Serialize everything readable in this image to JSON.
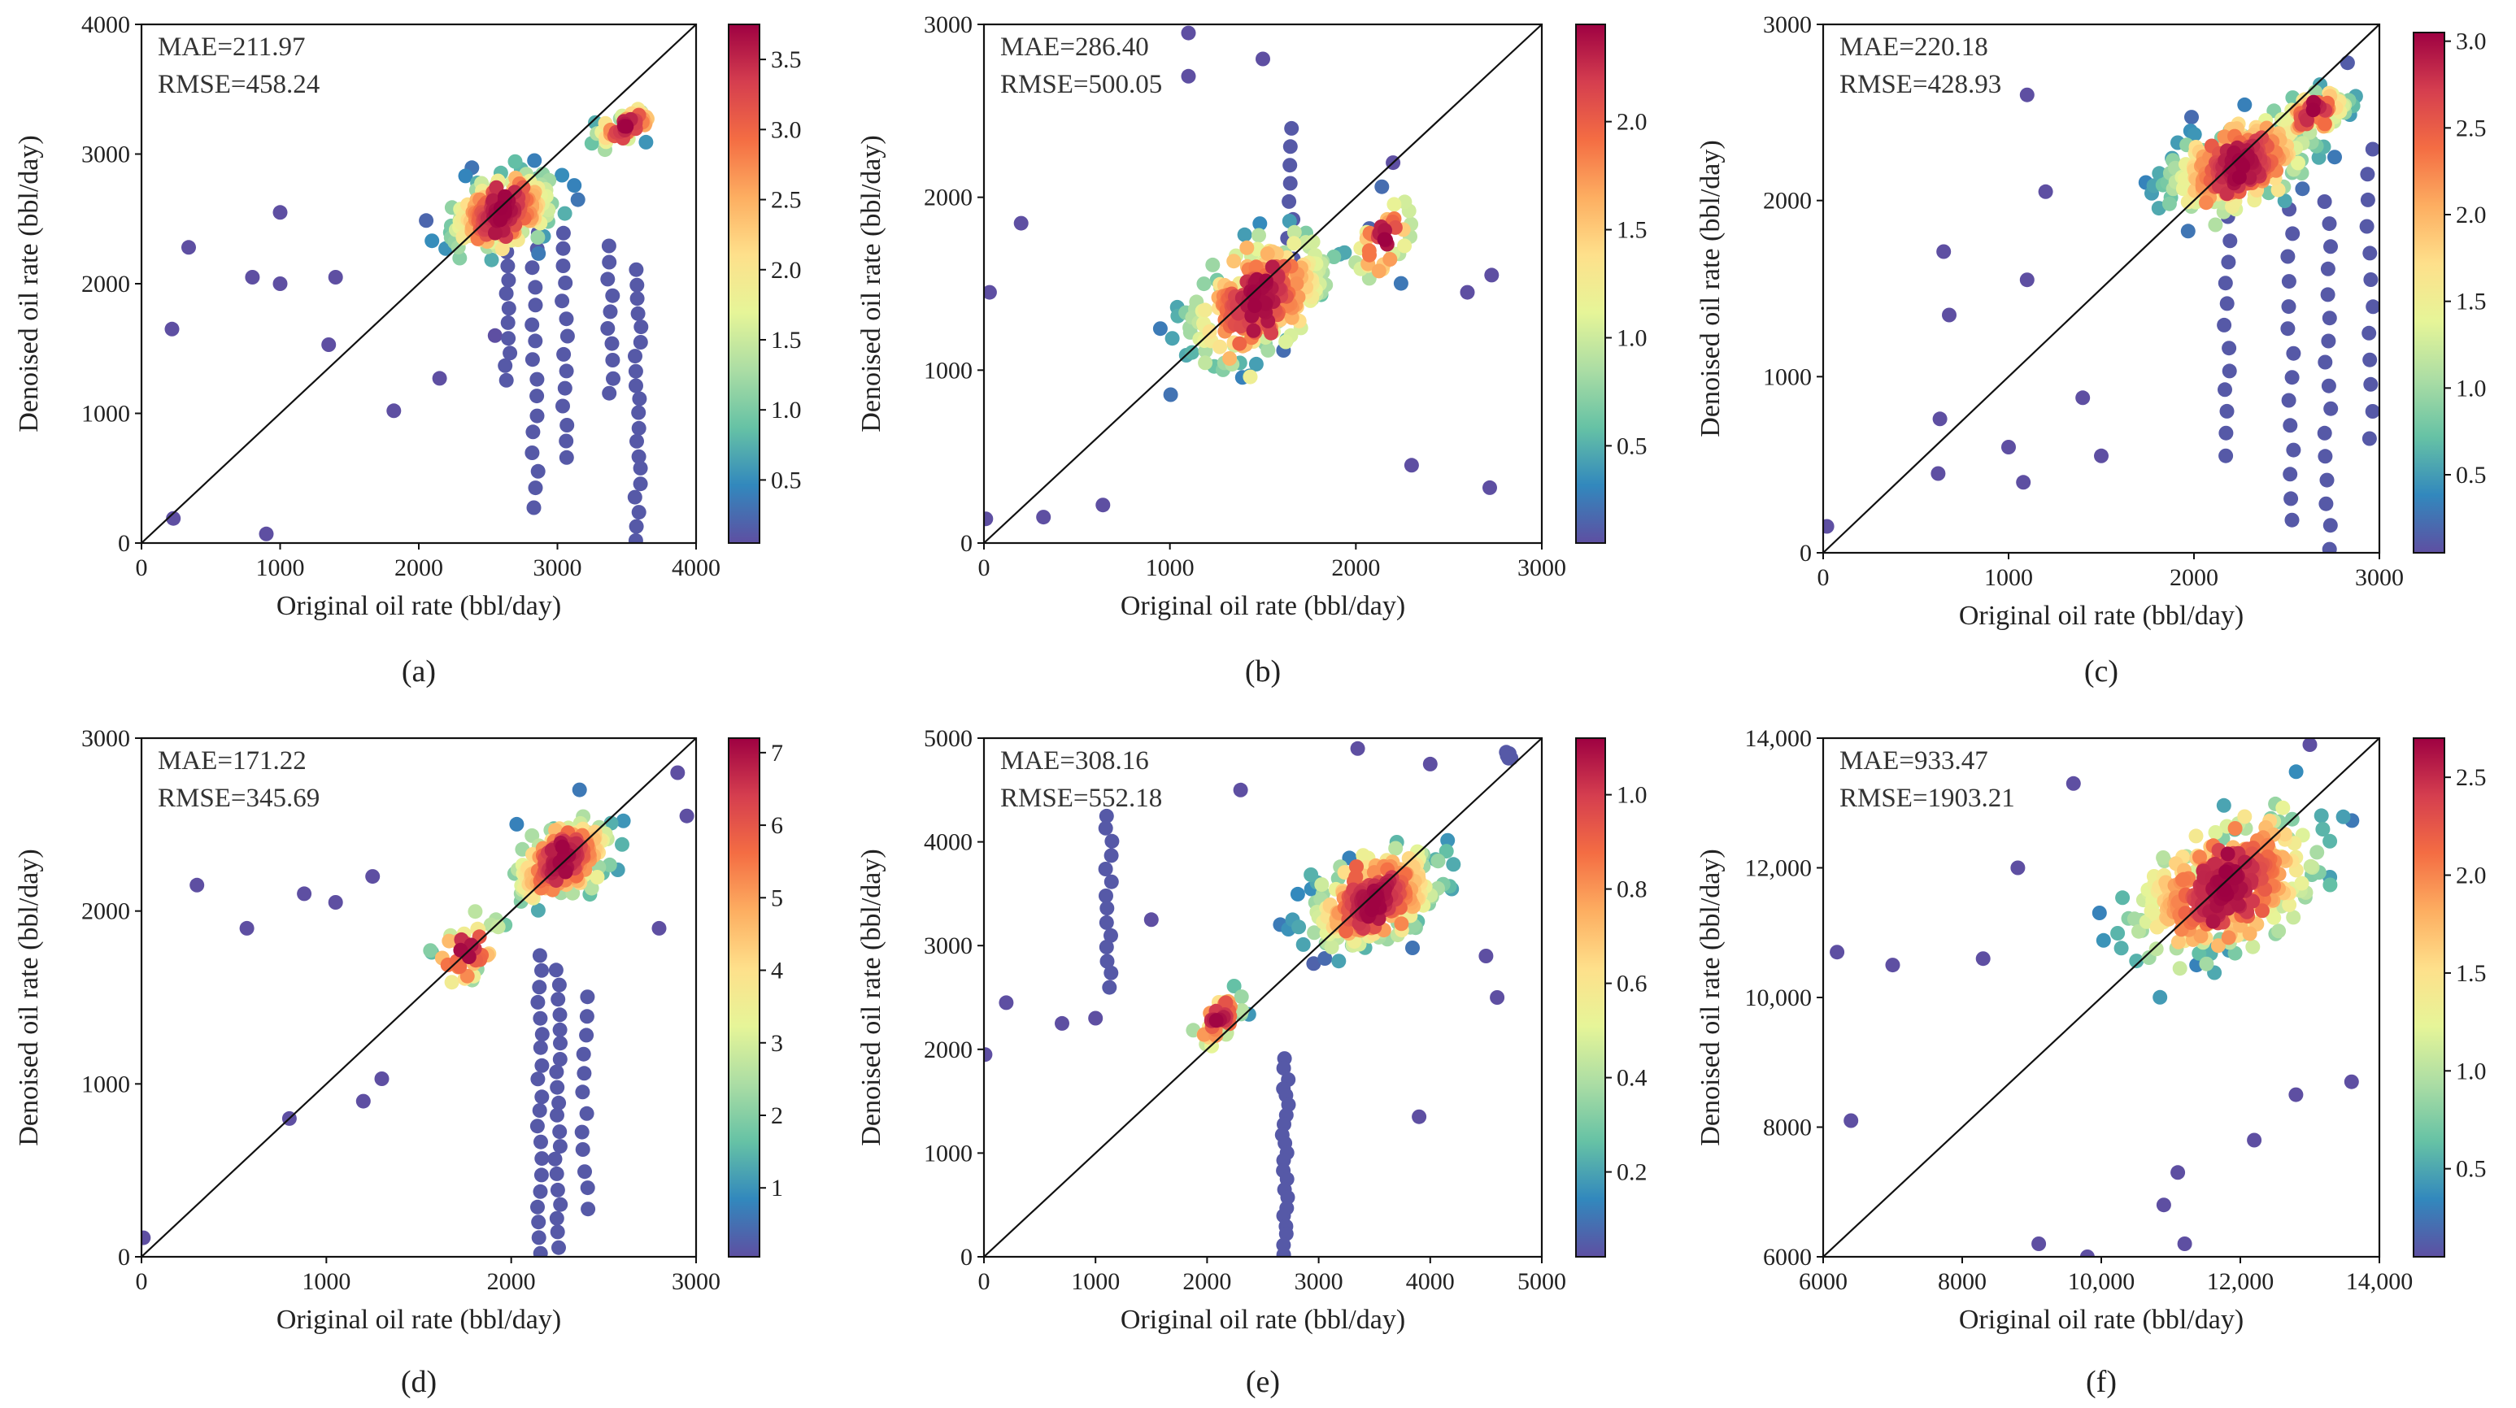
{
  "chart_data": [
    {
      "panel": "(a)",
      "type": "scatter",
      "title": "",
      "xlabel": "Original oil rate (bbl/day)",
      "ylabel": "Denoised oil rate (bbl/day)",
      "xlim": [
        0,
        4000
      ],
      "ylim": [
        0,
        4000
      ],
      "xticks": [
        "0",
        "1000",
        "2000",
        "3000",
        "4000"
      ],
      "yticks": [
        "0",
        "1000",
        "2000",
        "3000",
        "4000"
      ],
      "annotations": [
        "MAE=211.97",
        "RMSE=458.24"
      ],
      "colorbar": {
        "min": 0.05,
        "max": 3.75,
        "ticks": [
          "0.5",
          "1.0",
          "1.5",
          "2.0",
          "2.5",
          "3.0",
          "3.5"
        ]
      },
      "reference_line": "y = x",
      "clusters": [
        {
          "center": [
            2600,
            2550
          ],
          "spread": [
            420,
            320
          ],
          "count": 260
        },
        {
          "center": [
            3500,
            3200
          ],
          "spread": [
            250,
            160
          ],
          "count": 45
        }
      ],
      "streaks": [
        {
          "x": 2640,
          "y_from": 2250,
          "y_to": 1250,
          "count": 10
        },
        {
          "x": 2840,
          "y_from": 2400,
          "y_to": 280,
          "count": 16
        },
        {
          "x": 3050,
          "y_from": 2400,
          "y_to": 650,
          "count": 14
        },
        {
          "x": 3380,
          "y_from": 2300,
          "y_to": 1150,
          "count": 10
        },
        {
          "x": 3580,
          "y_from": 2100,
          "y_to": 20,
          "count": 20
        }
      ],
      "outliers": [
        [
          220,
          1650
        ],
        [
          340,
          2280
        ],
        [
          230,
          190
        ],
        [
          900,
          70
        ],
        [
          800,
          2050
        ],
        [
          1000,
          2550
        ],
        [
          1000,
          2000
        ],
        [
          1400,
          2050
        ],
        [
          1350,
          1530
        ],
        [
          1820,
          1020
        ],
        [
          2150,
          1270
        ],
        [
          2550,
          1600
        ]
      ]
    },
    {
      "panel": "(b)",
      "type": "scatter",
      "title": "",
      "xlabel": "Original oil rate (bbl/day)",
      "ylabel": "Denoised oil rate (bbl/day)",
      "xlim": [
        0,
        3000
      ],
      "ylim": [
        0,
        3000
      ],
      "xticks": [
        "0",
        "1000",
        "2000",
        "3000"
      ],
      "yticks": [
        "0",
        "1000",
        "2000",
        "3000"
      ],
      "annotations": [
        "MAE=286.40",
        "RMSE=500.05"
      ],
      "colorbar": {
        "min": 0.05,
        "max": 2.45,
        "ticks": [
          "0.5",
          "1.0",
          "1.5",
          "2.0"
        ]
      },
      "reference_line": "y = x",
      "clusters": [
        {
          "center": [
            1480,
            1420
          ],
          "spread": [
            420,
            380
          ],
          "count": 300
        },
        {
          "center": [
            2150,
            1750
          ],
          "spread": [
            180,
            280
          ],
          "count": 40
        }
      ],
      "streaks": [
        {
          "x": 1650,
          "y_from": 2400,
          "y_to": 1650,
          "count": 8
        }
      ],
      "outliers": [
        [
          1100,
          2950
        ],
        [
          1100,
          2700
        ],
        [
          1500,
          2800
        ],
        [
          200,
          1850
        ],
        [
          30,
          1450
        ],
        [
          10,
          140
        ],
        [
          320,
          150
        ],
        [
          640,
          220
        ],
        [
          2720,
          320
        ],
        [
          2730,
          1550
        ],
        [
          2300,
          450
        ],
        [
          2600,
          1450
        ],
        [
          2200,
          2200
        ]
      ]
    },
    {
      "panel": "(c)",
      "type": "scatter",
      "title": "",
      "xlabel": "Original oil rate (bbl/day)",
      "ylabel": "Denoised oil rate (bbl/day)",
      "xlim": [
        0,
        3000
      ],
      "ylim": [
        0,
        3000
      ],
      "xticks": [
        "0",
        "1000",
        "2000",
        "3000"
      ],
      "yticks": [
        "0",
        "1000",
        "2000",
        "3000"
      ],
      "annotations": [
        "MAE=220.18",
        "RMSE=428.93"
      ],
      "colorbar": {
        "min": 0.05,
        "max": 3.05,
        "ticks": [
          "0.5",
          "1.0",
          "1.5",
          "2.0",
          "2.5",
          "3.0"
        ]
      },
      "reference_line": "y = x",
      "clusters": [
        {
          "center": [
            2250,
            2200
          ],
          "spread": [
            420,
            280
          ],
          "count": 300
        },
        {
          "center": [
            2650,
            2500
          ],
          "spread": [
            200,
            150
          ],
          "count": 60
        }
      ],
      "streaks": [
        {
          "x": 2180,
          "y_from": 1900,
          "y_to": 550,
          "count": 12
        },
        {
          "x": 2520,
          "y_from": 1950,
          "y_to": 180,
          "count": 14
        },
        {
          "x": 2720,
          "y_from": 2000,
          "y_to": 20,
          "count": 16
        },
        {
          "x": 2950,
          "y_from": 2300,
          "y_to": 650,
          "count": 12
        }
      ],
      "outliers": [
        [
          20,
          150
        ],
        [
          620,
          450
        ],
        [
          630,
          760
        ],
        [
          650,
          1710
        ],
        [
          680,
          1350
        ],
        [
          1000,
          600
        ],
        [
          1080,
          400
        ],
        [
          1100,
          1550
        ],
        [
          1100,
          2600
        ],
        [
          1500,
          550
        ],
        [
          1400,
          880
        ],
        [
          1200,
          2050
        ]
      ]
    },
    {
      "panel": "(d)",
      "type": "scatter",
      "title": "",
      "xlabel": "Original oil rate (bbl/day)",
      "ylabel": "Denoised oil rate (bbl/day)",
      "xlim": [
        0,
        3000
      ],
      "ylim": [
        0,
        3000
      ],
      "xticks": [
        "0",
        "1000",
        "2000",
        "3000"
      ],
      "yticks": [
        "0",
        "1000",
        "2000",
        "3000"
      ],
      "annotations": [
        "MAE=171.22",
        "RMSE=345.69"
      ],
      "colorbar": {
        "min": 0.05,
        "max": 7.2,
        "ticks": [
          "1",
          "2",
          "3",
          "4",
          "5",
          "6",
          "7"
        ]
      },
      "reference_line": "y = x",
      "clusters": [
        {
          "center": [
            2280,
            2300
          ],
          "spread": [
            300,
            260
          ],
          "count": 230
        },
        {
          "center": [
            1750,
            1750
          ],
          "spread": [
            220,
            220
          ],
          "count": 40
        }
      ],
      "streaks": [
        {
          "x": 2150,
          "y_from": 1750,
          "y_to": 20,
          "count": 20
        },
        {
          "x": 2250,
          "y_from": 1650,
          "y_to": 60,
          "count": 20
        },
        {
          "x": 2400,
          "y_from": 1500,
          "y_to": 280,
          "count": 12
        }
      ],
      "outliers": [
        [
          10,
          110
        ],
        [
          300,
          2150
        ],
        [
          570,
          1900
        ],
        [
          800,
          800
        ],
        [
          880,
          2100
        ],
        [
          1050,
          2050
        ],
        [
          1200,
          900
        ],
        [
          1300,
          1030
        ],
        [
          1250,
          2200
        ],
        [
          2900,
          2800
        ],
        [
          2950,
          2550
        ],
        [
          2800,
          1900
        ]
      ]
    },
    {
      "panel": "(e)",
      "type": "scatter",
      "title": "",
      "xlabel": "Original oil rate (bbl/day)",
      "ylabel": "Denoised oil rate (bbl/day)",
      "xlim": [
        0,
        5000
      ],
      "ylim": [
        0,
        5000
      ],
      "xticks": [
        "0",
        "1000",
        "2000",
        "3000",
        "4000",
        "5000"
      ],
      "yticks": [
        "0",
        "1000",
        "2000",
        "3000",
        "4000",
        "5000"
      ],
      "annotations": [
        "MAE=308.16",
        "RMSE=552.18"
      ],
      "colorbar": {
        "min": 0.02,
        "max": 1.12,
        "ticks": [
          "0.2",
          "0.4",
          "0.6",
          "0.8",
          "1.0"
        ]
      },
      "reference_line": "y = x",
      "clusters": [
        {
          "center": [
            3500,
            3450
          ],
          "spread": [
            650,
            480
          ],
          "count": 330
        },
        {
          "center": [
            2100,
            2300
          ],
          "spread": [
            260,
            260
          ],
          "count": 45
        }
      ],
      "streaks": [
        {
          "x": 1120,
          "y_from": 4250,
          "y_to": 2600,
          "count": 14
        },
        {
          "x": 2700,
          "y_from": 1900,
          "y_to": 30,
          "count": 22
        },
        {
          "x": 4700,
          "y_from": 4850,
          "y_to": 4800,
          "count": 8
        }
      ],
      "outliers": [
        [
          10,
          1950
        ],
        [
          200,
          2450
        ],
        [
          1000,
          2300
        ],
        [
          700,
          2250
        ],
        [
          1500,
          3250
        ],
        [
          2300,
          4500
        ],
        [
          3350,
          4900
        ],
        [
          4000,
          4750
        ],
        [
          3900,
          1350
        ],
        [
          4600,
          2500
        ],
        [
          4500,
          2900
        ]
      ]
    },
    {
      "panel": "(f)",
      "type": "scatter",
      "title": "",
      "xlabel": "Original oil rate (bbl/day)",
      "ylabel": "Denoised oil rate (bbl/day)",
      "xlim": [
        6000,
        14000
      ],
      "ylim": [
        6000,
        14000
      ],
      "xticks": [
        "6000",
        "8000",
        "10,000",
        "12,000",
        "14,000"
      ],
      "yticks": [
        "6000",
        "8000",
        "10,000",
        "12,000",
        "14,000"
      ],
      "annotations": [
        "MAE=933.47",
        "RMSE=1903.21"
      ],
      "colorbar": {
        "min": 0.05,
        "max": 2.7,
        "ticks": [
          "0.5",
          "1.0",
          "1.5",
          "2.0",
          "2.5"
        ]
      },
      "reference_line": "y = x",
      "clusters": [
        {
          "center": [
            11800,
            11700
          ],
          "spread": [
            1500,
            1150
          ],
          "count": 380
        }
      ],
      "streaks": [],
      "outliers": [
        [
          6200,
          10700
        ],
        [
          6400,
          8100
        ],
        [
          7000,
          10500
        ],
        [
          8300,
          10600
        ],
        [
          8800,
          12000
        ],
        [
          9100,
          6200
        ],
        [
          9600,
          13300
        ],
        [
          9800,
          6000
        ],
        [
          11200,
          6200
        ],
        [
          10900,
          6800
        ],
        [
          11100,
          7300
        ],
        [
          13000,
          13900
        ],
        [
          13600,
          8700
        ],
        [
          12800,
          8500
        ],
        [
          12200,
          7800
        ]
      ]
    }
  ]
}
